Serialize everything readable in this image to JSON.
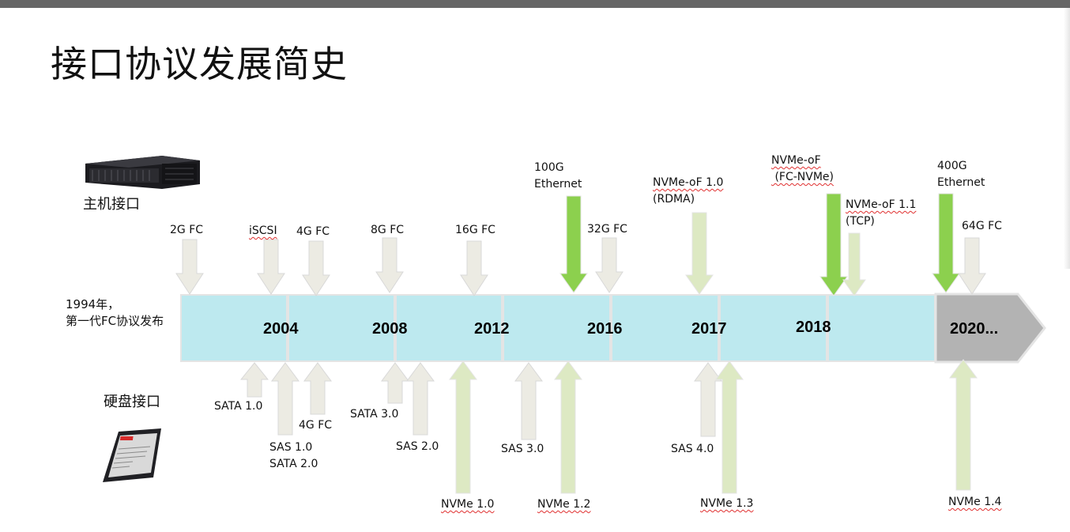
{
  "title": "接口协议发展简史",
  "sections": {
    "host": "主机接口",
    "disk": "硬盘接口"
  },
  "intro": {
    "line1": "1994年，",
    "line2": "第一代FC协议发布"
  },
  "timeline": {
    "years": [
      "2004",
      "2008",
      "2012",
      "2016",
      "2017",
      "2018",
      "2020..."
    ]
  },
  "colors": {
    "timeline": "#bde9ef",
    "future": "#b3b3b3",
    "grey_arrow": "#ecebe3",
    "green_arrow": "#8cd04e",
    "light_green_arrow": "#dde9c3"
  },
  "host_labels": [
    {
      "id": "2g-fc",
      "lines": [
        "2G FC"
      ]
    },
    {
      "id": "iscsi",
      "lines": [
        "iSCSI"
      ]
    },
    {
      "id": "4g-fc-host",
      "lines": [
        "4G FC"
      ]
    },
    {
      "id": "8g-fc",
      "lines": [
        "8G FC"
      ]
    },
    {
      "id": "16g-fc",
      "lines": [
        "16G FC"
      ]
    },
    {
      "id": "100g-ethernet",
      "lines": [
        "100G",
        "Ethernet"
      ]
    },
    {
      "id": "32g-fc",
      "lines": [
        "32G FC"
      ]
    },
    {
      "id": "nvme-of-1-0",
      "lines": [
        "NVMe-oF 1.0",
        "(RDMA)"
      ]
    },
    {
      "id": "nvme-of-fc",
      "lines": [
        "NVMe-oF",
        " (FC-NVMe)"
      ]
    },
    {
      "id": "nvme-of-1-1",
      "lines": [
        "NVMe-oF 1.1",
        "(TCP)"
      ]
    },
    {
      "id": "400g-ethernet",
      "lines": [
        "400G",
        "Ethernet"
      ]
    },
    {
      "id": "64g-fc",
      "lines": [
        "64G FC"
      ]
    }
  ],
  "disk_labels": [
    {
      "id": "sata-1-0",
      "lines": [
        "SATA 1.0"
      ]
    },
    {
      "id": "sas-1-0",
      "lines": [
        "SAS 1.0",
        "SATA 2.0"
      ]
    },
    {
      "id": "4g-fc-disk",
      "lines": [
        "4G FC"
      ]
    },
    {
      "id": "sata-3-0",
      "lines": [
        "SATA 3.0"
      ]
    },
    {
      "id": "sas-2-0",
      "lines": [
        "SAS 2.0"
      ]
    },
    {
      "id": "nvme-1-0",
      "lines": [
        "NVMe 1.0"
      ]
    },
    {
      "id": "sas-3-0",
      "lines": [
        "SAS 3.0"
      ]
    },
    {
      "id": "nvme-1-2",
      "lines": [
        "NVMe 1.2"
      ]
    },
    {
      "id": "sas-4-0",
      "lines": [
        "SAS 4.0"
      ]
    },
    {
      "id": "nvme-1-3",
      "lines": [
        "NVMe 1.3"
      ]
    },
    {
      "id": "nvme-1-4",
      "lines": [
        "NVMe 1.4"
      ]
    }
  ]
}
